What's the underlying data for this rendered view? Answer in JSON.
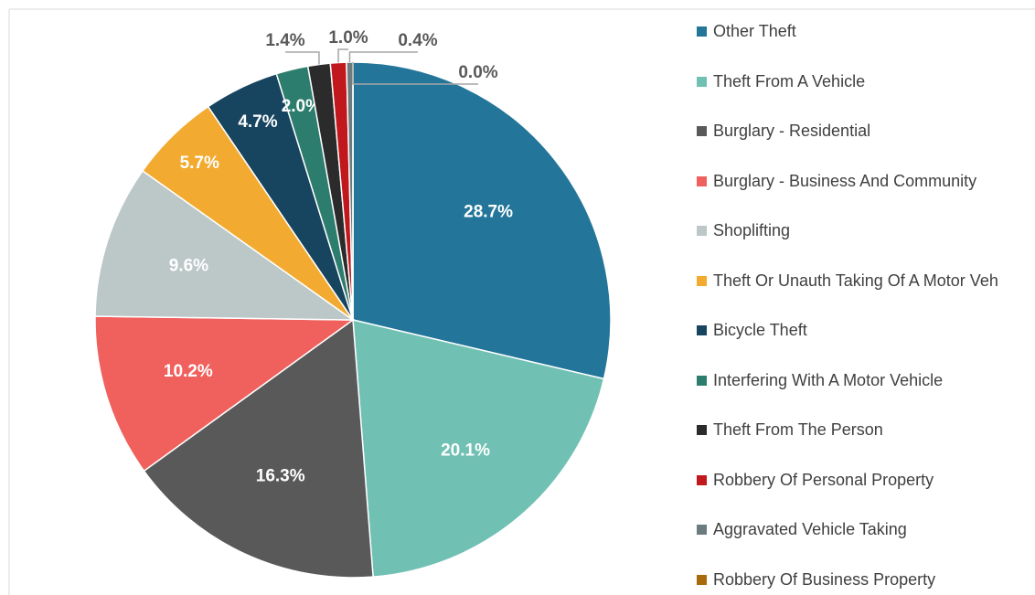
{
  "chart_data": {
    "type": "pie",
    "categories": [
      "Other Theft",
      "Theft From A Vehicle",
      "Burglary - Residential",
      "Burglary - Business And Community",
      "Shoplifting",
      "Theft Or Unauth Taking Of A Motor Veh",
      "Bicycle Theft",
      "Interfering With A Motor Vehicle",
      "Theft From The Person",
      "Robbery Of Personal Property",
      "Aggravated Vehicle Taking",
      "Robbery Of Business Property"
    ],
    "values": [
      28.7,
      20.1,
      16.3,
      10.2,
      9.6,
      5.7,
      4.7,
      2.0,
      1.4,
      1.0,
      0.4,
      0.0
    ],
    "value_labels": [
      "28.7%",
      "20.1%",
      "16.3%",
      "10.2%",
      "9.6%",
      "5.7%",
      "4.7%",
      "2.0%",
      "1.4%",
      "1.0%",
      "0.4%",
      "0.0%"
    ],
    "colors": [
      "#23759a",
      "#70c0b3",
      "#595959",
      "#f0605d",
      "#bcc7c8",
      "#f2ab30",
      "#17445e",
      "#2d7d6e",
      "#2b2b2b",
      "#c0181c",
      "#6c7b80",
      "#a86b0b"
    ],
    "legend": "right"
  }
}
